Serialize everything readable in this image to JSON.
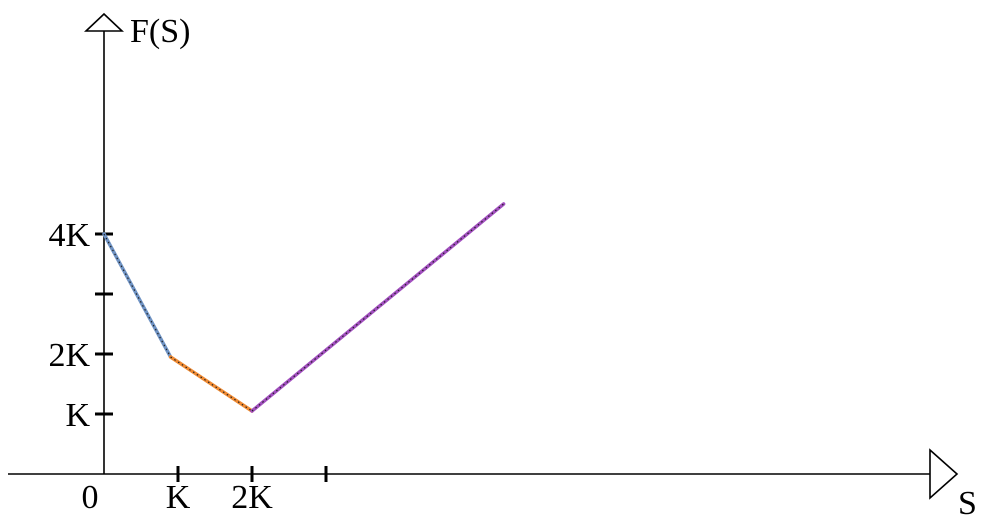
{
  "chart_data": {
    "type": "line",
    "title": "",
    "xlabel": "S",
    "ylabel": "F(S)",
    "x_tick_labels": [
      {
        "value": 0,
        "label": "0"
      },
      {
        "value": 1,
        "label": "K"
      },
      {
        "value": 2,
        "label": "2K"
      }
    ],
    "x_ticks_unlabeled": [
      3
    ],
    "y_tick_labels": [
      {
        "value": 1,
        "label": "K"
      },
      {
        "value": 2,
        "label": "2K"
      },
      {
        "value": 4,
        "label": "4K"
      }
    ],
    "y_ticks_unlabeled": [
      3
    ],
    "series": [
      {
        "x": [
          0,
          0.9
        ],
        "y": [
          4,
          1.95
        ],
        "color": "#6f93c4"
      },
      {
        "x": [
          0.9,
          2
        ],
        "y": [
          1.95,
          1.05
        ],
        "color": "#f08a32"
      },
      {
        "x": [
          2,
          5.4
        ],
        "y": [
          1.05,
          4.5
        ],
        "color": "#a24fbf"
      }
    ],
    "grid": false,
    "legend": "none"
  }
}
